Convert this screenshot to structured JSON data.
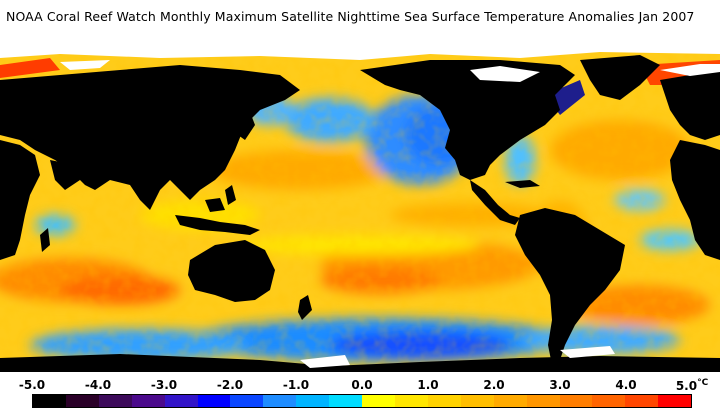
{
  "title": "NOAA Coral Reef Watch Monthly Maximum Satellite Nighttime Sea Surface Temperature Anomalies    Jan 2007",
  "colorbar": {
    "ticks": [
      "-5.0",
      "-4.0",
      "-3.0",
      "-2.0",
      "-1.0",
      "0.0",
      "1.0",
      "2.0",
      "3.0",
      "4.0",
      "5.0"
    ],
    "unit": "°C",
    "colors": [
      "#000000",
      "#2a0028",
      "#3c0a5a",
      "#4b0a8c",
      "#3214c8",
      "#0000ff",
      "#0a46ff",
      "#1e8cff",
      "#00b4ff",
      "#00dcff",
      "#ffff00",
      "#ffe600",
      "#ffd200",
      "#ffbe00",
      "#ffaa00",
      "#ff9600",
      "#ff7d00",
      "#ff6400",
      "#ff4600",
      "#ff0000"
    ]
  },
  "map": {
    "land_color": "#000000",
    "ice_color": "#ffffff",
    "ocean_base_color": "#ffcc1a"
  }
}
